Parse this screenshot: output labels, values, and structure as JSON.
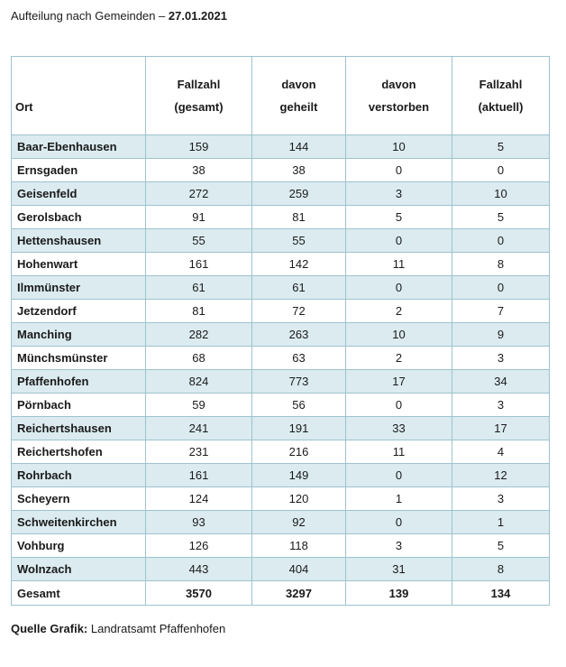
{
  "heading": {
    "prefix": "Aufteilung nach Gemeinden – ",
    "date": "27.01.2021"
  },
  "table": {
    "headers": {
      "ort": "Ort",
      "gesamt_1": "Fallzahl",
      "gesamt_2": "(gesamt)",
      "geheilt_1": "davon",
      "geheilt_2": "geheilt",
      "verstorben_1": "davon",
      "verstorben_2": "verstorben",
      "aktuell_1": "Fallzahl",
      "aktuell_2": "(aktuell)"
    },
    "rows": [
      [
        "Baar-Ebenhausen",
        "159",
        "144",
        "10",
        "5"
      ],
      [
        "Ernsgaden",
        "38",
        "38",
        "0",
        "0"
      ],
      [
        "Geisenfeld",
        "272",
        "259",
        "3",
        "10"
      ],
      [
        "Gerolsbach",
        "91",
        "81",
        "5",
        "5"
      ],
      [
        "Hettenshausen",
        "55",
        "55",
        "0",
        "0"
      ],
      [
        "Hohenwart",
        "161",
        "142",
        "11",
        "8"
      ],
      [
        "Ilmmünster",
        "61",
        "61",
        "0",
        "0"
      ],
      [
        "Jetzendorf",
        "81",
        "72",
        "2",
        "7"
      ],
      [
        "Manching",
        "282",
        "263",
        "10",
        "9"
      ],
      [
        "Münchsmünster",
        "68",
        "63",
        "2",
        "3"
      ],
      [
        "Pfaffenhofen",
        "824",
        "773",
        "17",
        "34"
      ],
      [
        "Pörnbach",
        "59",
        "56",
        "0",
        "3"
      ],
      [
        "Reichertshausen",
        "241",
        "191",
        "33",
        "17"
      ],
      [
        "Reichertshofen",
        "231",
        "216",
        "11",
        "4"
      ],
      [
        "Rohrbach",
        "161",
        "149",
        "0",
        "12"
      ],
      [
        "Scheyern",
        "124",
        "120",
        "1",
        "3"
      ],
      [
        "Schweitenkirchen",
        "93",
        "92",
        "0",
        "1"
      ],
      [
        "Vohburg",
        "126",
        "118",
        "3",
        "5"
      ],
      [
        "Wolnzach",
        "443",
        "404",
        "31",
        "8"
      ]
    ],
    "total": [
      "Gesamt",
      "3570",
      "3297",
      "139",
      "134"
    ],
    "shade_color": "#dbebf0",
    "border_color": "#9cc3cf"
  },
  "source": {
    "label": "Quelle Grafik:",
    "text": " Landratsamt Pfaffenhofen"
  }
}
